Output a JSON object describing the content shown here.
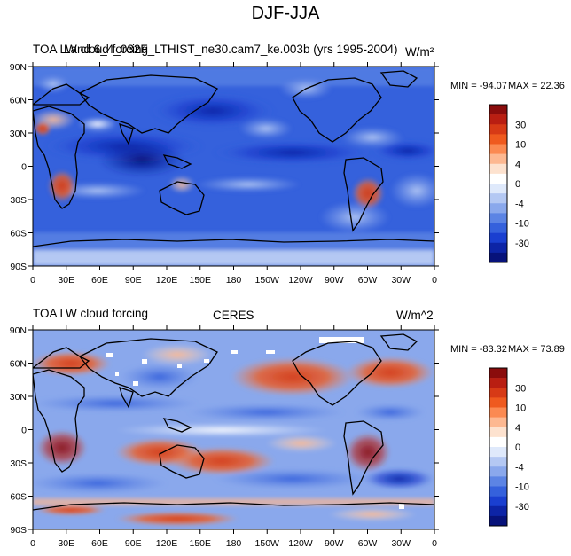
{
  "figure_title": "DJF-JJA",
  "chart_data": [
    {
      "type": "heatmap",
      "subtype": "global-map",
      "title_left_overlay": [
        "TOA LW cloud forcing",
        "Land 6_4_032F_LTHIST_ne30.cam7_ke.003b (yrs 1995-2004)"
      ],
      "units": "W/m²",
      "x_ticks": [
        "0",
        "30E",
        "60E",
        "90E",
        "120E",
        "150E",
        "180",
        "150W",
        "120W",
        "90W",
        "60W",
        "30W",
        "0"
      ],
      "y_ticks": [
        "90N",
        "60N",
        "30N",
        "0",
        "30S",
        "60S",
        "90S"
      ],
      "xlim": [
        0,
        360
      ],
      "ylim": [
        -90,
        90
      ],
      "min_text": "MIN = -94.07",
      "max_text": "MAX =  22.36",
      "min": -94.07,
      "max": 22.36,
      "colorbar_labels": [
        "30",
        "10",
        "4",
        "0",
        "-4",
        "-10",
        "-30"
      ]
    },
    {
      "type": "heatmap",
      "subtype": "global-map",
      "title_left": "TOA LW cloud forcing",
      "title_center": "CERES",
      "units": "W/m^2",
      "x_ticks": [
        "0",
        "30E",
        "60E",
        "90E",
        "120E",
        "150E",
        "180",
        "150W",
        "120W",
        "90W",
        "60W",
        "30W",
        "0"
      ],
      "y_ticks": [
        "90N",
        "60N",
        "30N",
        "0",
        "30S",
        "60S",
        "90S"
      ],
      "xlim": [
        0,
        360
      ],
      "ylim": [
        -90,
        90
      ],
      "min_text": "MIN = -83.32",
      "max_text": "MAX =  73.89",
      "min": -83.32,
      "max": 73.89,
      "colorbar_labels": [
        "30",
        "10",
        "4",
        "0",
        "-4",
        "-10",
        "-30"
      ]
    }
  ],
  "colorbar_colors": [
    "#8a0c0c",
    "#b91e12",
    "#d73a16",
    "#ef5a1f",
    "#fb8a52",
    "#fdb891",
    "#fde2cf",
    "#ffffff",
    "#dfe9fb",
    "#b4c8f3",
    "#8aa8ec",
    "#5c84e4",
    "#3561dc",
    "#1a3fd0",
    "#0d24a6",
    "#07127a"
  ]
}
